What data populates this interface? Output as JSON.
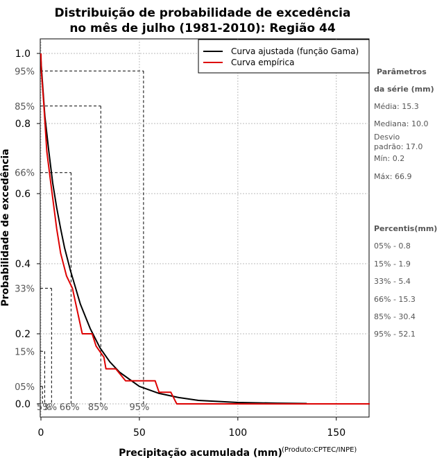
{
  "chart_data": {
    "type": "line",
    "title": [
      "Distribuição de probabilidade de excedência",
      "no mês de julho (1981-2010): Região 44"
    ],
    "xlabel": "Precipitação acumulada (mm)",
    "ylabel": "Probabilidade de excedência",
    "credit": "(Produto:CPTEC/INPE)",
    "xlim": [
      0,
      167
    ],
    "ylim": [
      0,
      1
    ],
    "x_ticks": [
      0,
      50,
      100,
      150
    ],
    "y_ticks": [
      "0.0",
      "0.2",
      "0.4",
      "0.6",
      "0.8",
      "1.0"
    ],
    "legend": [
      {
        "label": "Curva ajustada (função Gama)",
        "color": "#000000"
      },
      {
        "label": "Curva empírica",
        "color": "#dd0000"
      }
    ],
    "series": [
      {
        "name": "Curva ajustada (função Gama)",
        "color": "#000000",
        "x": [
          0,
          1,
          2,
          4,
          6,
          8,
          10,
          12,
          15,
          20,
          25,
          30,
          35,
          40,
          50,
          60,
          70,
          80,
          100,
          120,
          135
        ],
        "y": [
          0.98,
          0.9,
          0.82,
          0.72,
          0.63,
          0.56,
          0.5,
          0.445,
          0.38,
          0.285,
          0.215,
          0.16,
          0.12,
          0.09,
          0.05,
          0.03,
          0.018,
          0.01,
          0.004,
          0.002,
          0.001
        ]
      },
      {
        "name": "Curva empírica",
        "color": "#dd0000",
        "x": [
          0,
          0.2,
          1.5,
          3,
          5,
          8,
          10,
          13,
          16,
          21,
          26,
          28,
          32,
          33,
          38,
          43,
          45,
          58,
          60,
          66,
          69,
          167
        ],
        "y": [
          1.0,
          0.95,
          0.85,
          0.72,
          0.63,
          0.5,
          0.43,
          0.365,
          0.33,
          0.2,
          0.2,
          0.165,
          0.133,
          0.1,
          0.1,
          0.066,
          0.066,
          0.066,
          0.033,
          0.033,
          0.0,
          0.0
        ]
      }
    ],
    "percentile_lines": [
      {
        "label": "05%",
        "p": 0.05,
        "value": 0.8
      },
      {
        "label": "15%",
        "p": 0.15,
        "value": 1.9
      },
      {
        "label": "33%",
        "p": 0.33,
        "value": 5.4
      },
      {
        "label": "66%",
        "p": 0.66,
        "value": 15.3
      },
      {
        "label": "85%",
        "p": 0.85,
        "value": 30.4
      },
      {
        "label": "95%",
        "p": 0.95,
        "value": 52.1
      }
    ],
    "left_pct_labels": [
      {
        "label": "95%",
        "y": 0.95
      },
      {
        "label": "85%",
        "y": 0.85
      },
      {
        "label": "66%",
        "y": 0.66
      },
      {
        "label": "33%",
        "y": 0.33
      },
      {
        "label": "15%",
        "y": 0.15
      },
      {
        "label": "05%",
        "y": 0.05
      }
    ],
    "bottom_pct_labels": [
      {
        "label": "5%",
        "x": 1.5
      },
      {
        "label": "3%",
        "x": 4.5
      },
      {
        "label": "66%",
        "x": 14.5
      },
      {
        "label": "85%",
        "x": 29.0
      },
      {
        "label": "95%",
        "x": 50.0
      }
    ]
  },
  "sidebar": {
    "params_title_1": "Parâmetros",
    "params_title_2": "da série (mm)",
    "params": [
      "Média: 15.3",
      "Mediana: 10.0",
      "Desvio",
      "padrão: 17.0",
      "Mín: 0.2",
      "Máx: 66.9"
    ],
    "percentis_title": "Percentis(mm)",
    "percentis": [
      "05% - 0.8",
      "15% - 1.9",
      "33% - 5.4",
      "66% - 15.3",
      "85% - 30.4",
      "95% - 52.1"
    ]
  }
}
